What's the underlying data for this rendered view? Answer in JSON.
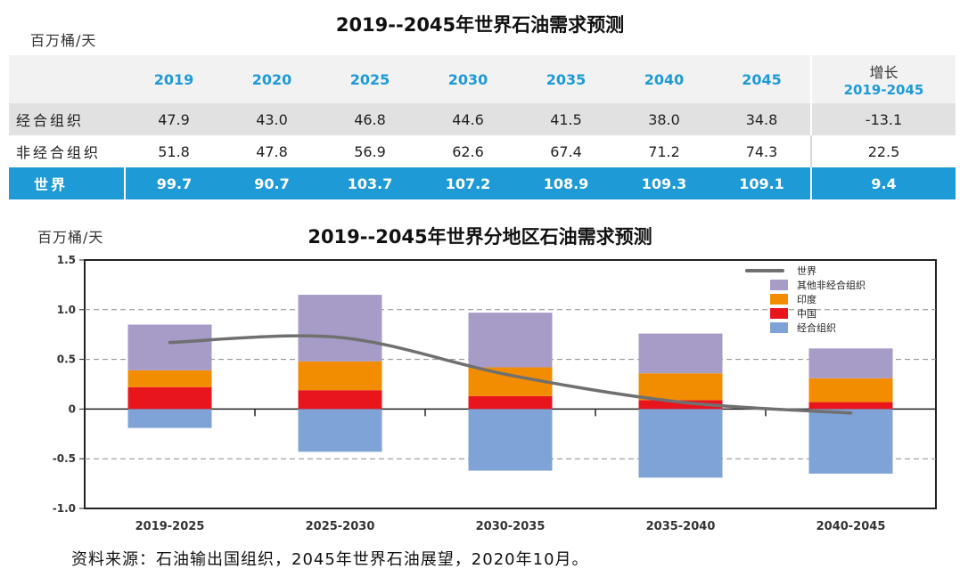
{
  "table": {
    "title": "2019--2045年世界石油需求预测",
    "unit": "百万桶/天",
    "years": [
      "2019",
      "2020",
      "2025",
      "2030",
      "2035",
      "2040",
      "2045"
    ],
    "growth_header": "增长",
    "growth_range": "2019-2045",
    "rows": [
      {
        "label": "经合组织",
        "values": [
          "47.9",
          "43.0",
          "46.8",
          "44.6",
          "41.5",
          "38.0",
          "34.8"
        ],
        "growth": "-13.1"
      },
      {
        "label": "非经合组织",
        "values": [
          "51.8",
          "47.8",
          "56.9",
          "62.6",
          "67.4",
          "71.2",
          "74.3"
        ],
        "growth": "22.5"
      },
      {
        "label": "世界",
        "values": [
          "99.7",
          "90.7",
          "103.7",
          "107.2",
          "108.9",
          "109.3",
          "109.1"
        ],
        "growth": "9.4"
      }
    ]
  },
  "chart_data": {
    "type": "bar",
    "title": "2019--2045年世界分地区石油需求预测",
    "ylabel": "百万桶/天",
    "categories": [
      "2019-2025",
      "2025-2030",
      "2030-2035",
      "2035-2040",
      "2040-2045"
    ],
    "ylim": [
      -1.0,
      1.5
    ],
    "yticks": [
      "1.5",
      "1.0",
      "0.5",
      "0",
      "-0.5",
      "-1.0"
    ],
    "grid": "dashed",
    "legend_position": "top-right",
    "series": [
      {
        "name": "中国",
        "color": "#e8151d",
        "values": [
          0.22,
          0.19,
          0.13,
          0.09,
          0.07
        ]
      },
      {
        "name": "印度",
        "color": "#f28c00",
        "values": [
          0.17,
          0.29,
          0.29,
          0.27,
          0.24
        ]
      },
      {
        "name": "其他非经合组织",
        "color": "#a79bc8",
        "values": [
          0.46,
          0.67,
          0.55,
          0.4,
          0.3
        ]
      },
      {
        "name": "经合组织",
        "color": "#7fa3d6",
        "values": [
          -0.19,
          -0.43,
          -0.62,
          -0.69,
          -0.65
        ]
      }
    ],
    "line": {
      "name": "世界",
      "color": "#707070",
      "values": [
        0.67,
        0.72,
        0.34,
        0.07,
        -0.04
      ]
    }
  },
  "source": "资料来源：石油输出国组织，2045年世界石油展望，2020年10月。"
}
